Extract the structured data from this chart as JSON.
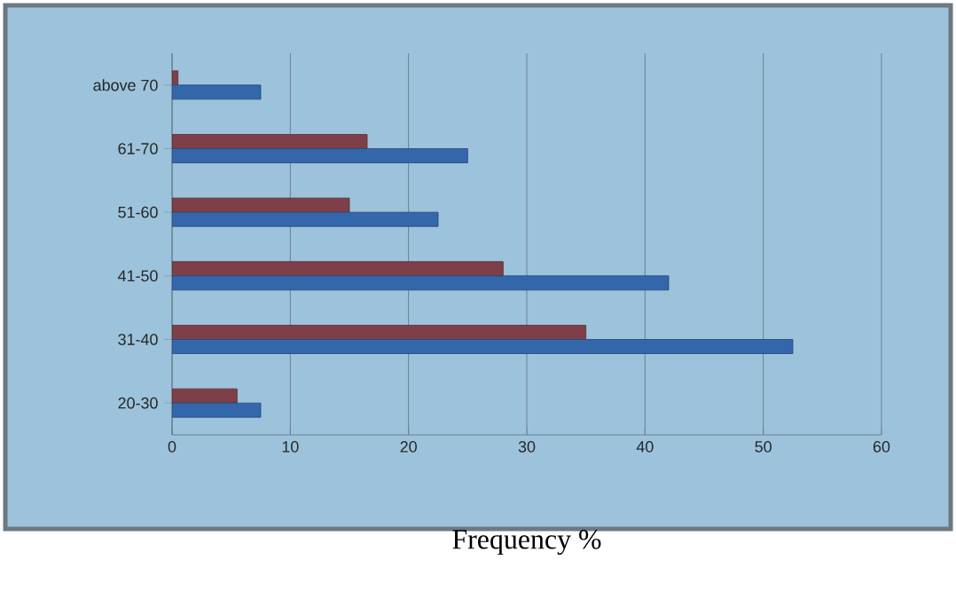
{
  "chart_data": {
    "type": "bar",
    "orientation": "horizontal",
    "xlabel": "Frequency %",
    "categories": [
      "above 70",
      "61-70",
      "51-60",
      "41-50",
      "31-40",
      "20-30"
    ],
    "series": [
      {
        "color": "#7f3f48",
        "values": [
          0.5,
          16.5,
          15,
          28,
          35,
          5.5
        ]
      },
      {
        "color": "#3466ab",
        "values": [
          7.5,
          25,
          22.5,
          42,
          52.5,
          7.5
        ]
      }
    ],
    "xlim": [
      0,
      60
    ],
    "xticks": [
      0,
      10,
      20,
      30,
      40,
      50,
      60
    ],
    "grid": "x"
  }
}
